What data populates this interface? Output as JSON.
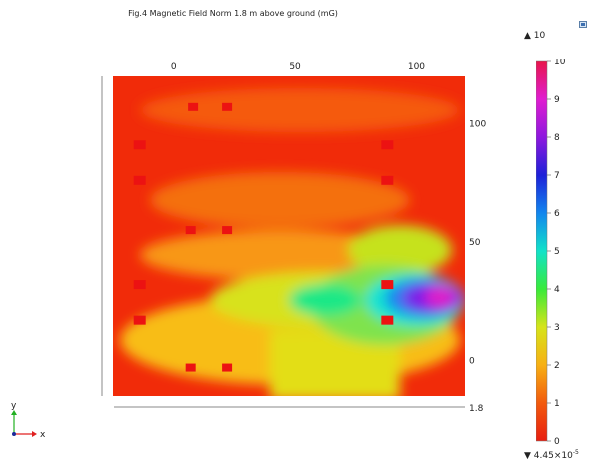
{
  "title": "Fig.4  Magnetic Field Norm 1.8 m above ground (mG)",
  "colorbar": {
    "max_label": "10",
    "min_label_mantissa": "4.45",
    "min_label_exp": "-5",
    "ticks": [
      "0",
      "1",
      "2",
      "3",
      "4",
      "5",
      "6",
      "7",
      "8",
      "9",
      "10"
    ],
    "range": [
      0,
      10
    ]
  },
  "plane_height_label": "1.8",
  "axes_triad": {
    "y_label": "y",
    "x_label": "x"
  },
  "chart_data": {
    "type": "heatmap",
    "title": "Fig.4  Magnetic Field Norm 1.8 m above ground (mG)",
    "x_ticks": [
      0,
      50,
      100
    ],
    "y_ticks": [
      0,
      50,
      100
    ],
    "xlim": [
      -25,
      120
    ],
    "ylim": [
      -15,
      120
    ],
    "zlim": [
      0,
      10
    ],
    "colormap": "rainbow",
    "sources": [
      {
        "x": 8,
        "y": 107
      },
      {
        "x": 22,
        "y": 107
      },
      {
        "x": -14,
        "y": 91
      },
      {
        "x": 88,
        "y": 91
      },
      {
        "x": -14,
        "y": 76
      },
      {
        "x": 88,
        "y": 76
      },
      {
        "x": 7,
        "y": 55
      },
      {
        "x": 22,
        "y": 55
      },
      {
        "x": -14,
        "y": 32
      },
      {
        "x": 88,
        "y": 32
      },
      {
        "x": -14,
        "y": 17
      },
      {
        "x": 88,
        "y": 17
      },
      {
        "x": 7,
        "y": -3
      },
      {
        "x": 22,
        "y": -3
      }
    ],
    "hotspot": {
      "x": 105,
      "y": 25,
      "value": 9.6
    }
  }
}
